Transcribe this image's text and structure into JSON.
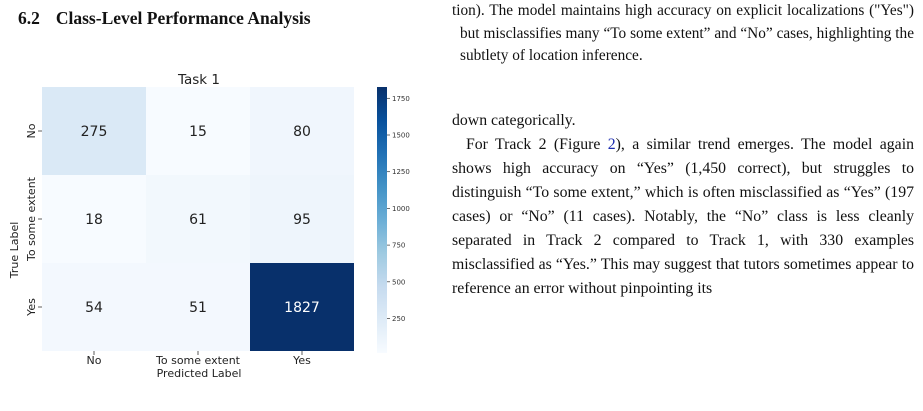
{
  "section": {
    "number": "6.2",
    "title": "Class-Level Performance Analysis"
  },
  "chart_data": {
    "type": "heatmap",
    "title": "Task 1",
    "xlabel": "Predicted Label",
    "ylabel": "True Label",
    "x_categories": [
      "No",
      "To some extent",
      "Yes"
    ],
    "y_categories": [
      "No",
      "To some extent",
      "Yes"
    ],
    "values": [
      [
        275,
        15,
        80
      ],
      [
        18,
        61,
        95
      ],
      [
        54,
        51,
        1827
      ]
    ],
    "colorbar": {
      "ticks": [
        250,
        500,
        750,
        1000,
        1250,
        1500,
        1750
      ],
      "range": [
        15,
        1827
      ],
      "colormap": "Blues"
    }
  },
  "right_column": {
    "caption_tail": "tion). The model maintains high accuracy on explicit localizations (\"Yes\") but misclassifies many “To some extent” and “No” cases, highlighting the subtlety of location inference.",
    "fragment": "down categorically.",
    "para_before_ref": "For Track 2 (Figure ",
    "fig_ref": "2",
    "para_after_ref": "), a similar trend emerges. The model again shows high accuracy on “Yes” (1,450 correct), but struggles to distinguish “To some extent,” which is often misclassified as “Yes” (197 cases) or “No” (11 cases). Notably, the “No” class is less cleanly separated in Track 2 compared to Track 1, with 330 examples misclassified as “Yes.” This may suggest that tutors sometimes appear to reference an error without pinpointing its"
  }
}
